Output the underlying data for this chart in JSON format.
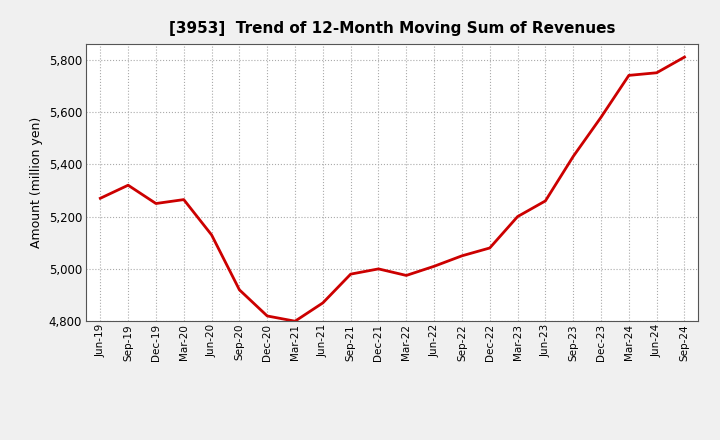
{
  "title": "[3953]  Trend of 12-Month Moving Sum of Revenues",
  "ylabel": "Amount (million yen)",
  "line_color": "#cc0000",
  "background_color": "#f0f0f0",
  "plot_background_color": "#ffffff",
  "grid_color": "#aaaaaa",
  "ylim": [
    4800,
    5860
  ],
  "yticks": [
    4800,
    5000,
    5200,
    5400,
    5600,
    5800
  ],
  "x_labels": [
    "Jun-19",
    "Sep-19",
    "Dec-19",
    "Mar-20",
    "Jun-20",
    "Sep-20",
    "Dec-20",
    "Mar-21",
    "Jun-21",
    "Sep-21",
    "Dec-21",
    "Mar-22",
    "Jun-22",
    "Sep-22",
    "Dec-22",
    "Mar-23",
    "Jun-23",
    "Sep-23",
    "Dec-23",
    "Mar-24",
    "Jun-24",
    "Sep-24"
  ],
  "values": [
    5270,
    5320,
    5250,
    5265,
    5130,
    4920,
    4820,
    4800,
    4870,
    4980,
    5000,
    4975,
    5010,
    5050,
    5080,
    5200,
    5260,
    5430,
    5580,
    5740,
    5750,
    5810
  ]
}
